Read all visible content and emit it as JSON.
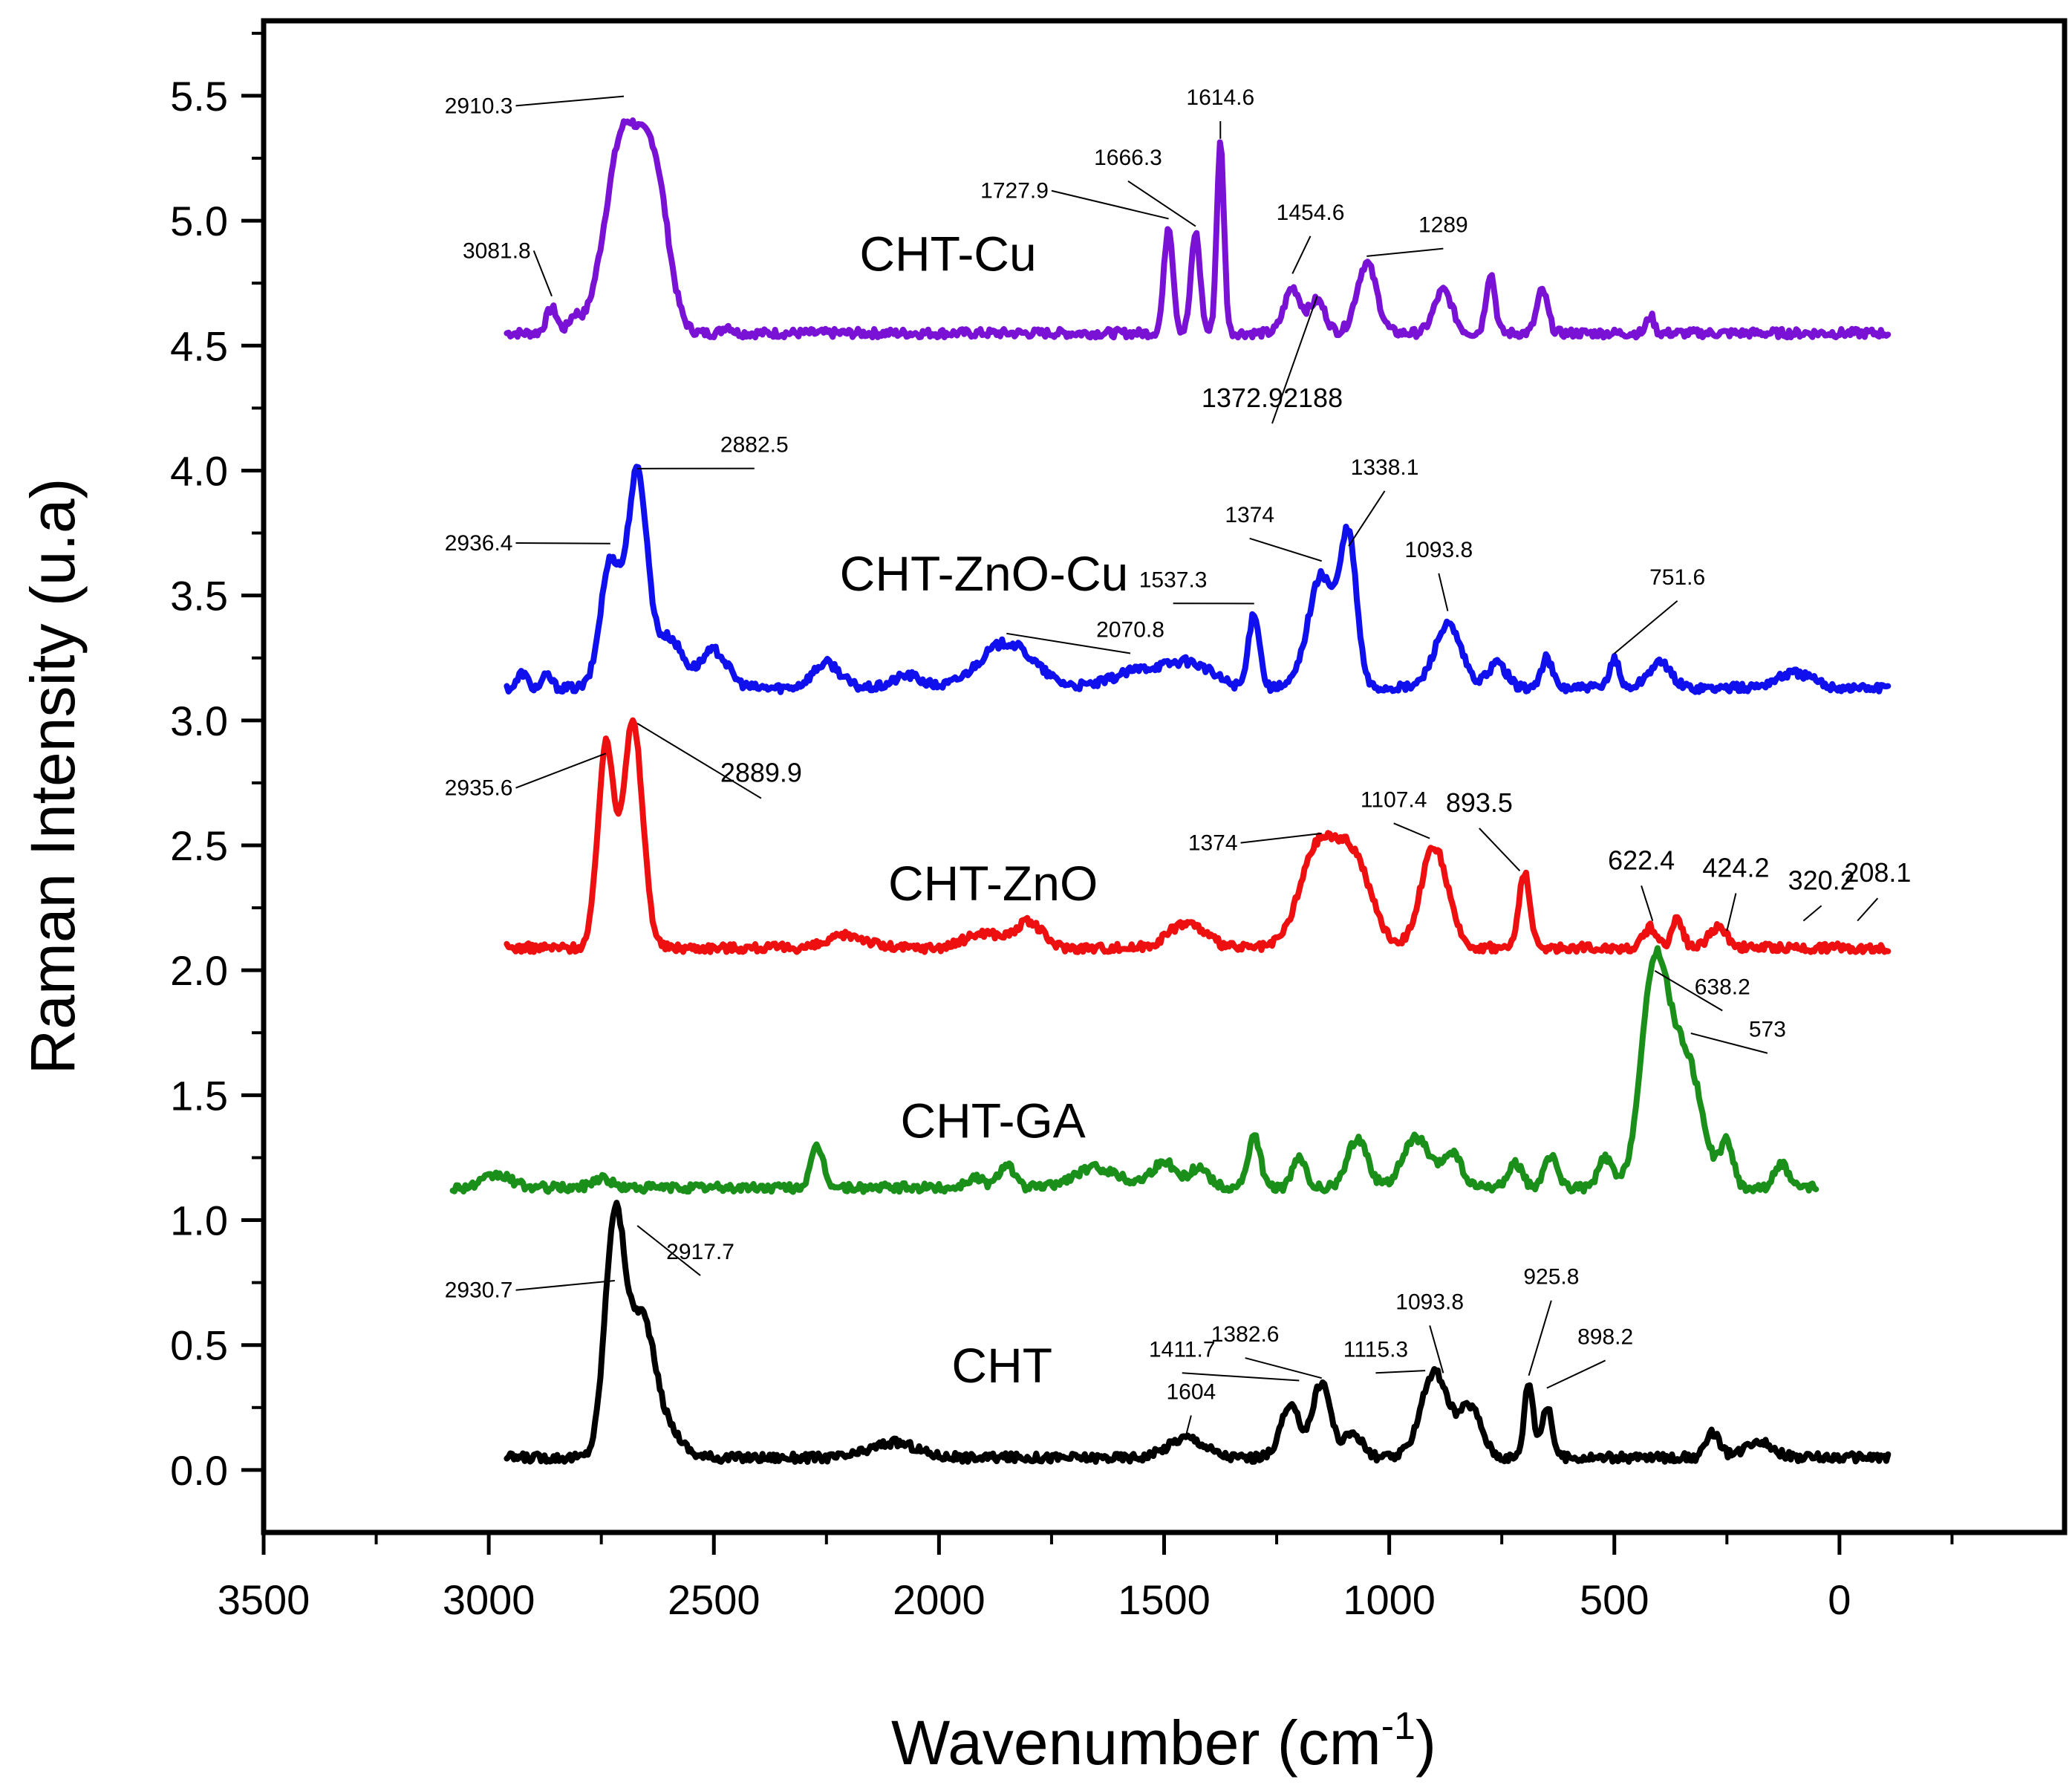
{
  "chart_data": {
    "type": "line",
    "title": "",
    "xlabel": "Wavenumber (cm",
    "xlabel_sup": "-1",
    "xlabel_end": ")",
    "ylabel": "Raman Intensity  (u.a)",
    "xlim": [
      3500,
      -500
    ],
    "ylim": [
      -0.25,
      5.8
    ],
    "x_ticks": [
      3500,
      3000,
      2500,
      2000,
      1500,
      1000,
      500,
      0
    ],
    "x_tick_labels": [
      "3500",
      "3000",
      "2500",
      "2000",
      "1500",
      "1000",
      "500",
      "0"
    ],
    "y_ticks": [
      0.0,
      0.5,
      1.0,
      1.5,
      2.0,
      2.5,
      3.0,
      3.5,
      4.0,
      4.5,
      5.0,
      5.5
    ],
    "y_tick_labels": [
      "0.0",
      "0.5",
      "1.0",
      "1.5",
      "2.0",
      "2.5",
      "3.0",
      "3.5",
      "4.0",
      "4.5",
      "5.0",
      "5.5"
    ],
    "grid": false,
    "series": [
      {
        "name": "CHT-Cu",
        "color": "#7a12d6",
        "label_pos": [
          1980,
          4.8
        ],
        "x_range": [
          2960,
          -110
        ],
        "baseline": 4.55,
        "peaks": [
          [
            2860,
            0.1,
            12
          ],
          [
            2810,
            0.06,
            12
          ],
          [
            2700,
            0.8,
            40
          ],
          [
            2630,
            0.55,
            30
          ],
          [
            2470,
            0.03,
            10
          ],
          [
            1490,
            0.43,
            10
          ],
          [
            1430,
            0.4,
            10
          ],
          [
            1375,
            0.76,
            8
          ],
          [
            1215,
            0.18,
            18
          ],
          [
            1160,
            0.13,
            18
          ],
          [
            1050,
            0.28,
            22
          ],
          [
            880,
            0.17,
            20
          ],
          [
            775,
            0.24,
            10
          ],
          [
            660,
            0.17,
            12
          ],
          [
            420,
            0.07,
            8
          ]
        ]
      },
      {
        "name": "CHT-ZnO-Cu",
        "color": "#1010ee",
        "label_pos": [
          1900,
          3.52
        ],
        "x_range": [
          2960,
          -110
        ],
        "baseline": 3.13,
        "peaks": [
          [
            2925,
            0.06,
            10
          ],
          [
            2870,
            0.05,
            10
          ],
          [
            2730,
            0.5,
            22
          ],
          [
            2670,
            0.85,
            22
          ],
          [
            2600,
            0.2,
            30
          ],
          [
            2500,
            0.15,
            30
          ],
          [
            2250,
            0.1,
            30
          ],
          [
            2070,
            0.05,
            30
          ],
          [
            1850,
            0.18,
            60
          ],
          [
            1550,
            0.07,
            60
          ],
          [
            1440,
            0.09,
            50
          ],
          [
            1300,
            0.3,
            12
          ],
          [
            1150,
            0.45,
            30
          ],
          [
            1090,
            0.57,
            18
          ],
          [
            870,
            0.25,
            30
          ],
          [
            760,
            0.1,
            20
          ],
          [
            650,
            0.12,
            12
          ],
          [
            500,
            0.12,
            10
          ],
          [
            400,
            0.1,
            25
          ],
          [
            100,
            0.06,
            40
          ]
        ]
      },
      {
        "name": "CHT-ZnO",
        "color": "#ee1010",
        "label_pos": [
          1880,
          2.28
        ],
        "x_range": [
          2960,
          -110
        ],
        "baseline": 2.09,
        "peaks": [
          [
            2740,
            0.8,
            18
          ],
          [
            2680,
            0.9,
            22
          ],
          [
            2200,
            0.05,
            40
          ],
          [
            1900,
            0.06,
            40
          ],
          [
            1800,
            0.1,
            30
          ],
          [
            1450,
            0.1,
            40
          ],
          [
            1160,
            0.38,
            40
          ],
          [
            1080,
            0.35,
            40
          ],
          [
            900,
            0.4,
            30
          ],
          [
            700,
            0.3,
            12
          ],
          [
            420,
            0.08,
            15
          ],
          [
            360,
            0.12,
            12
          ],
          [
            270,
            0.08,
            20
          ]
        ]
      },
      {
        "name": "CHT-GA",
        "color": "#1a8f1a",
        "label_pos": [
          1880,
          1.33
        ],
        "x_range": [
          3080,
          50
        ],
        "baseline": 1.13,
        "peaks": [
          [
            2980,
            0.05,
            30
          ],
          [
            2750,
            0.04,
            20
          ],
          [
            2270,
            0.16,
            14
          ],
          [
            1920,
            0.04,
            20
          ],
          [
            1850,
            0.1,
            16
          ],
          [
            1650,
            0.08,
            50
          ],
          [
            1500,
            0.1,
            30
          ],
          [
            1420,
            0.08,
            20
          ],
          [
            1300,
            0.2,
            14
          ],
          [
            1200,
            0.12,
            14
          ],
          [
            1070,
            0.2,
            22
          ],
          [
            940,
            0.2,
            30
          ],
          [
            860,
            0.14,
            20
          ],
          [
            720,
            0.1,
            15
          ],
          [
            640,
            0.12,
            15
          ],
          [
            520,
            0.12,
            15
          ],
          [
            410,
            0.87,
            30
          ],
          [
            340,
            0.5,
            35
          ],
          [
            250,
            0.17,
            14
          ],
          [
            130,
            0.1,
            14
          ]
        ]
      },
      {
        "name": "CHT",
        "color": "#000000",
        "label_pos": [
          1860,
          0.35
        ],
        "x_range": [
          2960,
          -110
        ],
        "baseline": 0.05,
        "peaks": [
          [
            2720,
            0.95,
            22
          ],
          [
            2660,
            0.55,
            28
          ],
          [
            2600,
            0.1,
            30
          ],
          [
            2100,
            0.06,
            50
          ],
          [
            1450,
            0.08,
            40
          ],
          [
            1220,
            0.2,
            22
          ],
          [
            1150,
            0.3,
            20
          ],
          [
            1080,
            0.1,
            20
          ],
          [
            900,
            0.34,
            30
          ],
          [
            820,
            0.2,
            25
          ],
          [
            690,
            0.3,
            10
          ],
          [
            650,
            0.2,
            12
          ],
          [
            280,
            0.1,
            15
          ],
          [
            180,
            0.07,
            30
          ]
        ]
      }
    ],
    "annotations": [
      {
        "text": "2910.3",
        "series": "CHT-Cu",
        "x": 2700,
        "y": 5.48,
        "tx": 2940,
        "ty": 5.46,
        "side": "left",
        "big": false
      },
      {
        "text": "3081.8",
        "series": "CHT-Cu",
        "x": 2860,
        "y": 4.68,
        "tx": 2900,
        "ty": 4.88,
        "side": "left",
        "big": false
      },
      {
        "text": "1727.9",
        "series": "CHT-Cu",
        "x": 1490,
        "y": 4.99,
        "tx": 1750,
        "ty": 5.12,
        "side": "left",
        "big": false
      },
      {
        "text": "1666.3",
        "series": "CHT-Cu",
        "x": 1430,
        "y": 4.96,
        "tx": 1580,
        "ty": 5.2,
        "side": "center",
        "big": false
      },
      {
        "text": "1614.6",
        "series": "CHT-Cu",
        "x": 1375,
        "y": 5.31,
        "tx": 1375,
        "ty": 5.44,
        "side": "center",
        "big": false
      },
      {
        "text": "1454.6",
        "series": "CHT-Cu",
        "x": 1215,
        "y": 4.77,
        "tx": 1175,
        "ty": 4.98,
        "side": "center",
        "big": false
      },
      {
        "text": "1289",
        "series": "CHT-Cu",
        "x": 1050,
        "y": 4.84,
        "tx": 880,
        "ty": 4.93,
        "side": "center",
        "big": false
      },
      {
        "text": "1372.92188",
        "series": "CHT-Cu",
        "x": 1160,
        "y": 4.68,
        "tx": 1260,
        "ty": 4.23,
        "side": "center",
        "big": true
      },
      {
        "text": "2882.5",
        "series": "CHT-ZnO-Cu",
        "x": 2670,
        "y": 3.99,
        "tx": 2410,
        "ty": 4.05,
        "side": "center",
        "big": false
      },
      {
        "text": "2936.4",
        "series": "CHT-ZnO-Cu",
        "x": 2730,
        "y": 3.69,
        "tx": 2940,
        "ty": 3.71,
        "side": "left",
        "big": false
      },
      {
        "text": "1374",
        "series": "CHT-ZnO-Cu",
        "x": 1150,
        "y": 3.62,
        "tx": 1310,
        "ty": 3.77,
        "side": "center",
        "big": false
      },
      {
        "text": "1338.1",
        "series": "CHT-ZnO-Cu",
        "x": 1090,
        "y": 3.68,
        "tx": 1010,
        "ty": 3.96,
        "side": "center",
        "big": false
      },
      {
        "text": "1537.3",
        "series": "CHT-ZnO-Cu",
        "x": 1300,
        "y": 3.45,
        "tx": 1480,
        "ty": 3.51,
        "side": "center",
        "big": false
      },
      {
        "text": "1093.8",
        "series": "CHT-ZnO-Cu",
        "x": 870,
        "y": 3.42,
        "tx": 890,
        "ty": 3.63,
        "side": "center",
        "big": false
      },
      {
        "text": "2070.8",
        "series": "CHT-ZnO-Cu",
        "x": 1850,
        "y": 3.33,
        "tx": 1575,
        "ty": 3.31,
        "side": "center",
        "big": false
      },
      {
        "text": "751.6",
        "series": "CHT-ZnO-Cu",
        "x": 500,
        "y": 3.25,
        "tx": 360,
        "ty": 3.52,
        "side": "center",
        "big": false
      },
      {
        "text": "2935.6",
        "series": "CHT-ZnO",
        "x": 2740,
        "y": 2.85,
        "tx": 2940,
        "ty": 2.73,
        "side": "left",
        "big": false
      },
      {
        "text": "2889.9",
        "series": "CHT-ZnO",
        "x": 2670,
        "y": 2.97,
        "tx": 2395,
        "ty": 2.73,
        "side": "center",
        "big": true
      },
      {
        "text": "1374",
        "series": "CHT-ZnO",
        "x": 1150,
        "y": 2.53,
        "tx": 1330,
        "ty": 2.51,
        "side": "left",
        "big": false
      },
      {
        "text": "1107.4",
        "series": "CHT-ZnO",
        "x": 910,
        "y": 2.51,
        "tx": 990,
        "ty": 2.63,
        "side": "center",
        "big": false
      },
      {
        "text": "893.5",
        "series": "CHT-ZnO",
        "x": 710,
        "y": 2.38,
        "tx": 800,
        "ty": 2.61,
        "side": "center",
        "big": true
      },
      {
        "text": "622.4",
        "series": "CHT-ZnO",
        "x": 415,
        "y": 2.18,
        "tx": 440,
        "ty": 2.38,
        "side": "center",
        "big": true
      },
      {
        "text": "424.2",
        "series": "CHT-ZnO",
        "x": 250,
        "y": 2.14,
        "tx": 230,
        "ty": 2.35,
        "side": "center",
        "big": true
      },
      {
        "text": "320.2",
        "series": "CHT-ZnO",
        "x": 80,
        "y": 2.18,
        "tx": 40,
        "ty": 2.3,
        "side": "center",
        "big": true
      },
      {
        "text": "208.1",
        "series": "CHT-ZnO",
        "x": -40,
        "y": 2.18,
        "tx": -85,
        "ty": 2.33,
        "side": "center",
        "big": true
      },
      {
        "text": "638.2",
        "series": "CHT-GA",
        "x": 410,
        "y": 1.98,
        "tx": 260,
        "ty": 1.88,
        "side": "center",
        "big": false
      },
      {
        "text": "573",
        "series": "CHT-GA",
        "x": 330,
        "y": 1.73,
        "tx": 160,
        "ty": 1.71,
        "side": "center",
        "big": false
      },
      {
        "text": "2930.7",
        "series": "CHT",
        "x": 2720,
        "y": 0.74,
        "tx": 2940,
        "ty": 0.72,
        "side": "left",
        "big": false
      },
      {
        "text": "2917.7",
        "series": "CHT",
        "x": 2670,
        "y": 0.96,
        "tx": 2530,
        "ty": 0.82,
        "side": "center",
        "big": false
      },
      {
        "text": "1411.7",
        "series": "CHT",
        "x": 1200,
        "y": 0.34,
        "tx": 1460,
        "ty": 0.43,
        "side": "center",
        "big": false
      },
      {
        "text": "1382.6",
        "series": "CHT",
        "x": 1150,
        "y": 0.35,
        "tx": 1320,
        "ty": 0.49,
        "side": "center",
        "big": false
      },
      {
        "text": "1115.3",
        "series": "CHT",
        "x": 920,
        "y": 0.38,
        "tx": 1030,
        "ty": 0.43,
        "side": "center",
        "big": false
      },
      {
        "text": "1093.8",
        "series": "CHT",
        "x": 880,
        "y": 0.37,
        "tx": 910,
        "ty": 0.62,
        "side": "center",
        "big": false
      },
      {
        "text": "1604",
        "series": "CHT",
        "x": 1450,
        "y": 0.13,
        "tx": 1440,
        "ty": 0.26,
        "side": "center",
        "big": false
      },
      {
        "text": "925.8",
        "series": "CHT",
        "x": 690,
        "y": 0.36,
        "tx": 640,
        "ty": 0.72,
        "side": "center",
        "big": false
      },
      {
        "text": "898.2",
        "series": "CHT",
        "x": 650,
        "y": 0.31,
        "tx": 520,
        "ty": 0.48,
        "side": "center",
        "big": false
      }
    ]
  }
}
